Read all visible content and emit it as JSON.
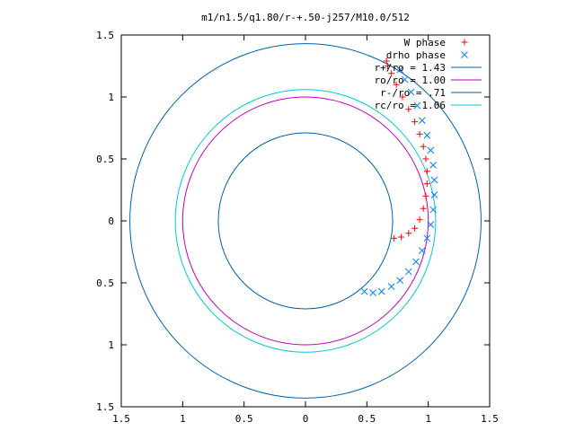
{
  "chart_data": {
    "type": "scatter",
    "title": "m1/n1.5/q1.80/r-+.50-j257/M10.0/512",
    "xlim": [
      -1.5,
      1.5
    ],
    "ylim": [
      -1.5,
      1.5
    ],
    "xticks": [
      -1.5,
      -1,
      -0.5,
      0,
      0.5,
      1,
      1.5
    ],
    "xtick_labels": [
      "1.5",
      "1",
      "0.5",
      "0",
      "0.5",
      "1",
      "1.5"
    ],
    "yticks": [
      1.5,
      1,
      0.5,
      0,
      -0.5,
      -1,
      -1.5
    ],
    "ytick_labels": [
      "1.5",
      "1",
      "0.5",
      "0",
      "0.5",
      "1",
      "1.5"
    ],
    "grid": false,
    "legend_position": "top-right",
    "series": [
      {
        "name": "W phase",
        "kind": "points",
        "marker": "plus",
        "color": "#ff0000",
        "x": [
          0.72,
          0.78,
          0.84,
          0.89,
          0.93,
          0.96,
          0.98,
          0.99,
          0.99,
          0.98,
          0.96,
          0.93,
          0.89,
          0.84,
          0.79,
          0.74,
          0.7,
          0.67,
          0.66
        ],
        "y": [
          -0.14,
          -0.13,
          -0.1,
          -0.06,
          0.01,
          0.1,
          0.2,
          0.3,
          0.4,
          0.5,
          0.6,
          0.7,
          0.8,
          0.9,
          1.0,
          1.1,
          1.19,
          1.25,
          1.29
        ]
      },
      {
        "name": "drho phase",
        "kind": "points",
        "marker": "cross",
        "color": "#0080ff",
        "x": [
          0.48,
          0.55,
          0.62,
          0.7,
          0.77,
          0.84,
          0.9,
          0.95,
          0.99,
          1.02,
          1.04,
          1.05,
          1.05,
          1.04,
          1.02,
          0.99,
          0.95,
          0.91,
          0.86,
          0.81,
          0.77
        ],
        "y": [
          -0.57,
          -0.58,
          -0.57,
          -0.53,
          -0.48,
          -0.41,
          -0.33,
          -0.24,
          -0.14,
          -0.03,
          0.09,
          0.21,
          0.33,
          0.45,
          0.57,
          0.69,
          0.81,
          0.93,
          1.04,
          1.14,
          1.22
        ]
      },
      {
        "name": "r+/ro = 1.43",
        "kind": "circle",
        "r": 1.43,
        "color": "#0060ad"
      },
      {
        "name": "ro/ro = 1.00",
        "kind": "circle",
        "r": 1.0,
        "color": "#c000c0"
      },
      {
        "name": "r-/ro = .71",
        "kind": "circle",
        "r": 0.71,
        "color": "#0060ad"
      },
      {
        "name": "rc/ro = 1.06",
        "kind": "circle",
        "r": 1.06,
        "color": "#00c8e0"
      }
    ]
  }
}
